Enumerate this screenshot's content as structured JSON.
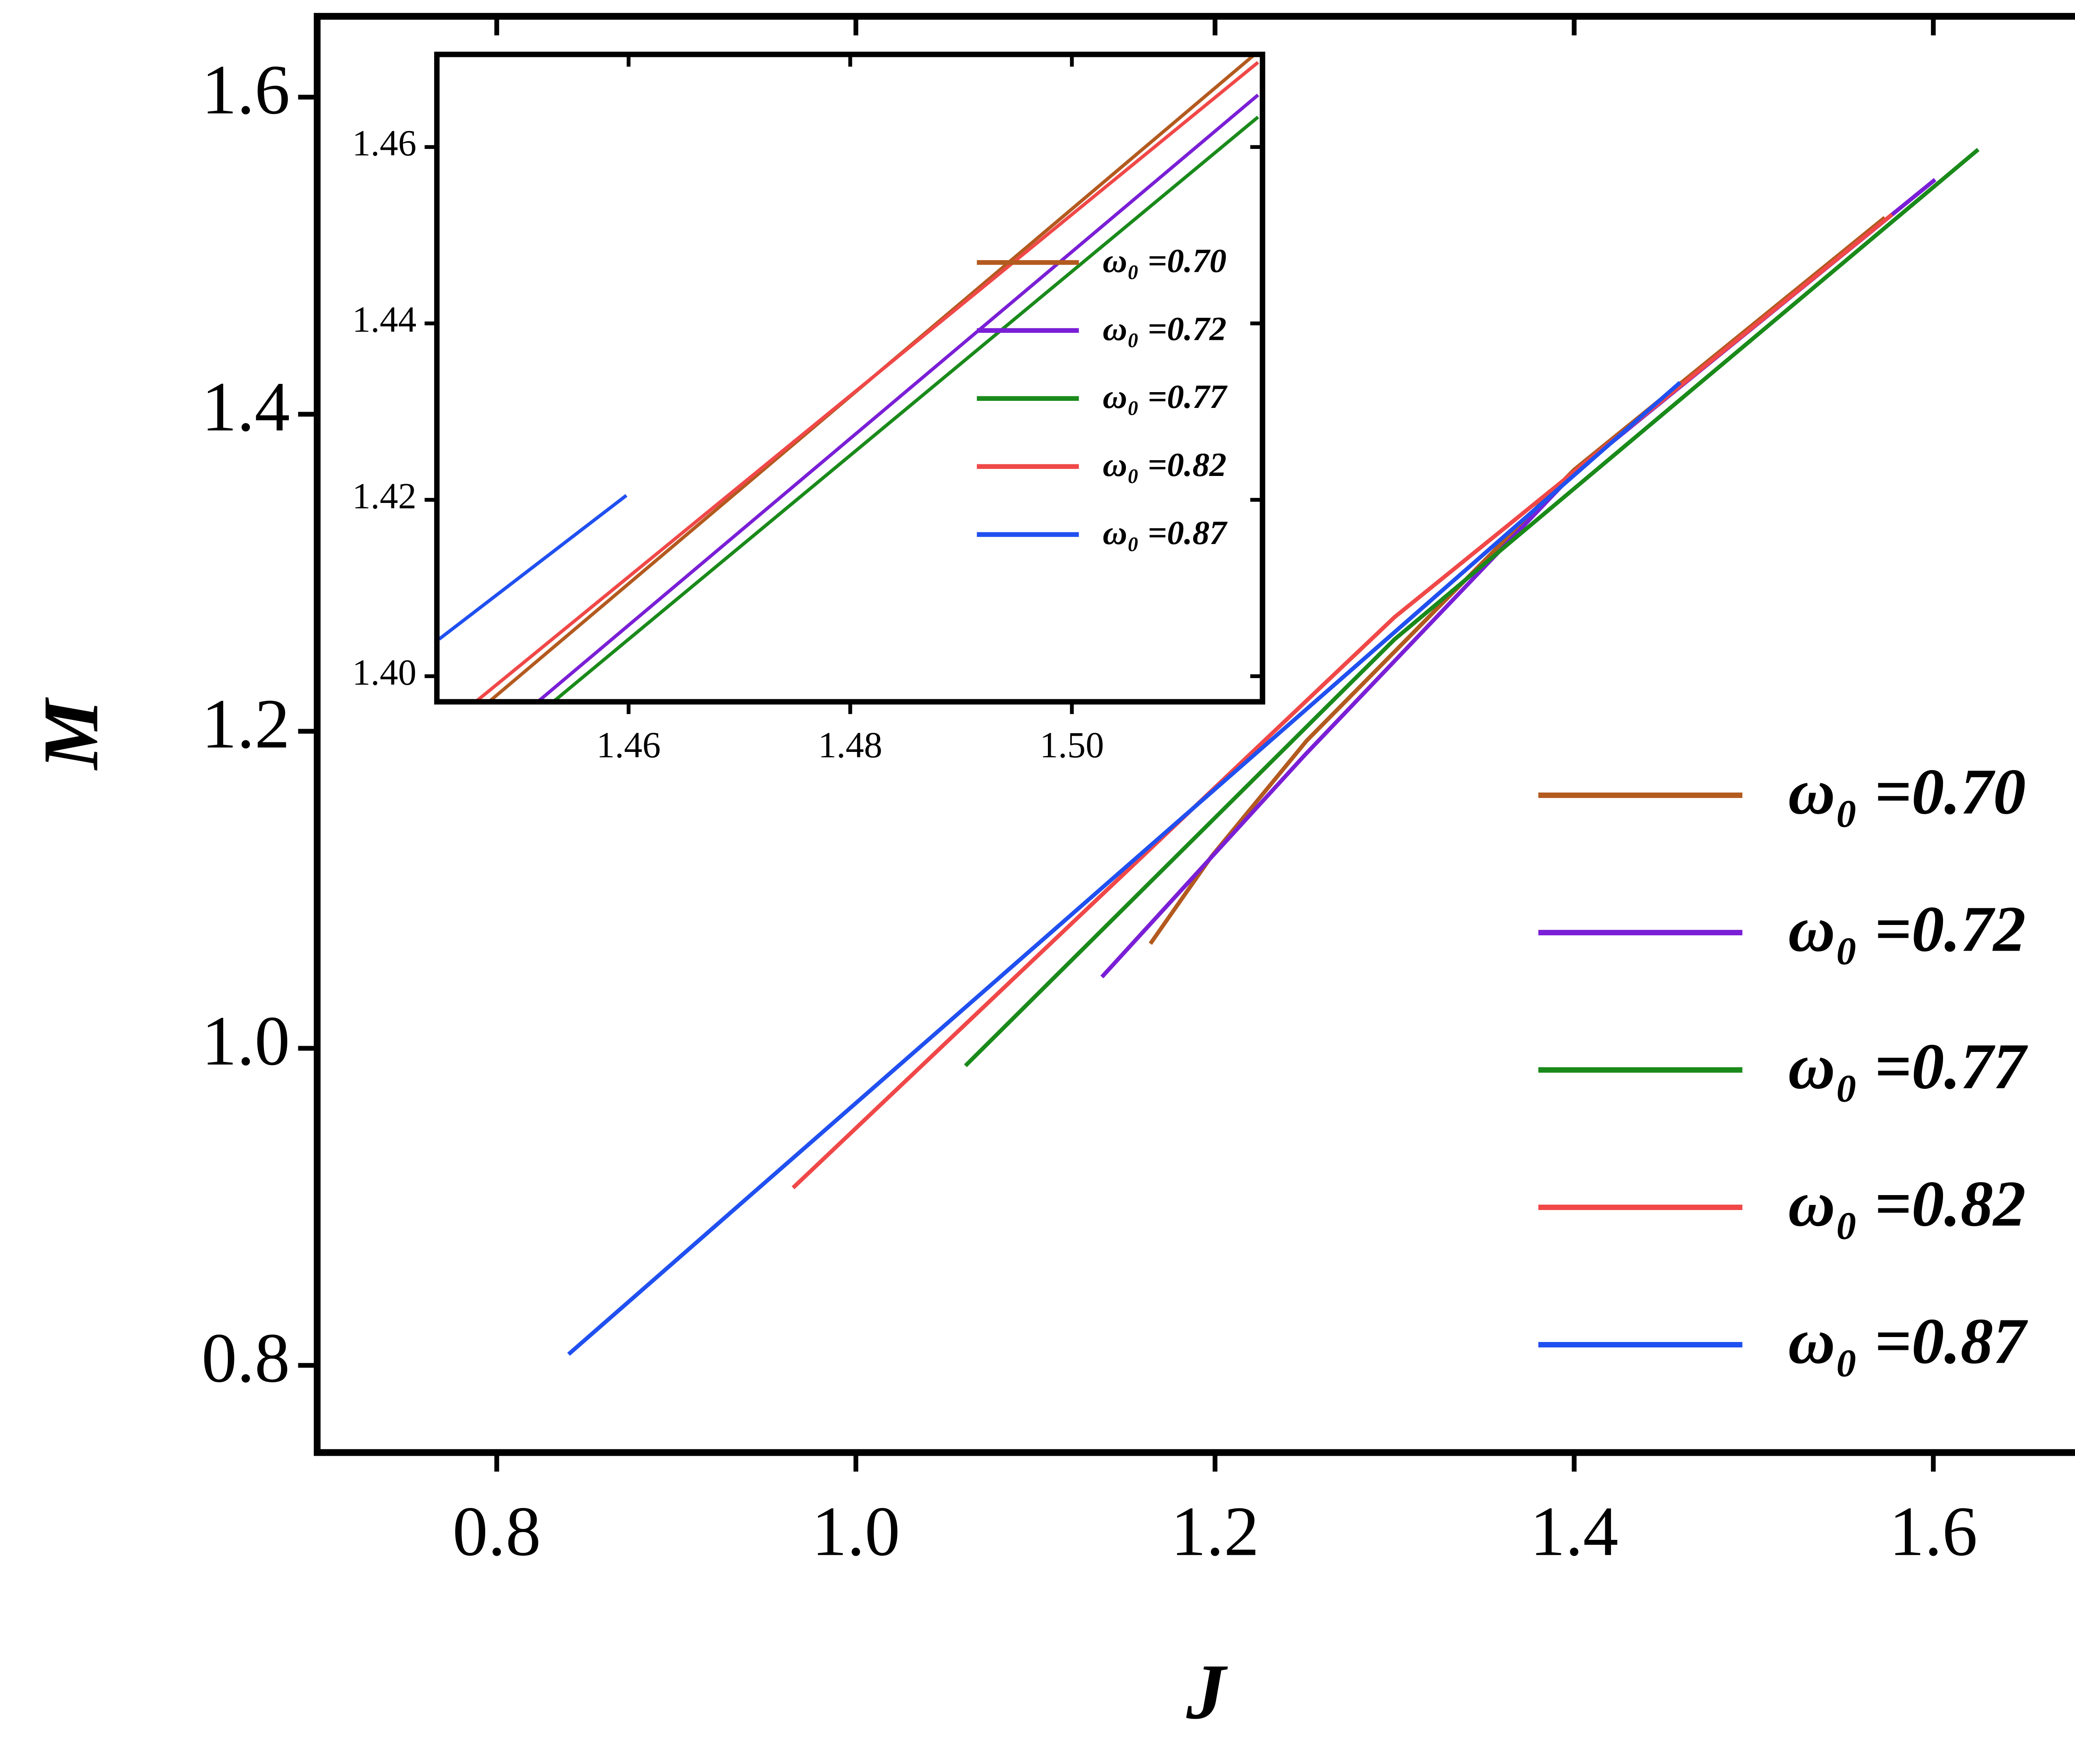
{
  "chart_data": [
    {
      "type": "line",
      "xlabel": "J",
      "ylabel": "M",
      "xlim": [
        0.7,
        1.69
      ],
      "ylim": [
        0.745,
        1.651
      ],
      "xticks": [
        {
          "value": 0.8,
          "label": "0.8"
        },
        {
          "value": 1.0,
          "label": "1.0"
        },
        {
          "value": 1.2,
          "label": "1.2"
        },
        {
          "value": 1.4,
          "label": "1.4"
        },
        {
          "value": 1.6,
          "label": "1.6"
        }
      ],
      "yticks": [
        {
          "value": 0.8,
          "label": "0.8"
        },
        {
          "value": 1.0,
          "label": "1.0"
        },
        {
          "value": 1.2,
          "label": "1.2"
        },
        {
          "value": 1.4,
          "label": "1.4"
        },
        {
          "value": 1.6,
          "label": "1.6"
        }
      ],
      "legend": "lower right",
      "series": [
        {
          "name": "ω₀ =0.70",
          "color": "#b35a1f",
          "x": [
            1.164,
            1.198,
            1.251,
            1.4,
            1.573
          ],
          "values": [
            1.066,
            1.121,
            1.194,
            1.365,
            1.524
          ]
        },
        {
          "name": "ω₀ =0.72",
          "color": "#7a1fd6",
          "x": [
            1.137,
            1.25,
            1.4,
            1.601
          ],
          "values": [
            1.045,
            1.185,
            1.363,
            1.548
          ]
        },
        {
          "name": "ω₀ =0.77",
          "color": "#1a8a1a",
          "x": [
            1.061,
            1.3,
            1.625
          ],
          "values": [
            0.989,
            1.258,
            1.567
          ]
        },
        {
          "name": "ω₀ =0.82",
          "color": "#f04848",
          "x": [
            0.965,
            1.3,
            1.577
          ],
          "values": [
            0.912,
            1.272,
            1.526
          ]
        },
        {
          "name": "ω₀ =0.87",
          "color": "#2050f0",
          "x": [
            0.84,
            1.459
          ],
          "values": [
            0.807,
            1.42
          ]
        }
      ]
    },
    {
      "type": "line",
      "xlim": [
        1.4427,
        1.5172
      ],
      "ylim": [
        1.3971,
        1.4705
      ],
      "xticks": [
        {
          "value": 1.46,
          "label": "1.46"
        },
        {
          "value": 1.48,
          "label": "1.48"
        },
        {
          "value": 1.5,
          "label": "1.50"
        }
      ],
      "yticks": [
        {
          "value": 1.4,
          "label": "1.40"
        },
        {
          "value": 1.42,
          "label": "1.42"
        },
        {
          "value": 1.44,
          "label": "1.44"
        },
        {
          "value": 1.46,
          "label": "1.46"
        }
      ],
      "legend": "center right",
      "series": [
        {
          "name": "ω₀ =0.70",
          "color": "#b35a1f",
          "x": [
            1.4474,
            1.5165
          ],
          "values": [
            1.3971,
            1.4705
          ]
        },
        {
          "name": "ω₀ =0.72",
          "color": "#7a1fd6",
          "x": [
            1.4518,
            1.5168
          ],
          "values": [
            1.3971,
            1.4659
          ]
        },
        {
          "name": "ω₀ =0.77",
          "color": "#1a8a1a",
          "x": [
            1.4532,
            1.5168
          ],
          "values": [
            1.3971,
            1.4634
          ]
        },
        {
          "name": "ω₀ =0.82",
          "color": "#f04848",
          "x": [
            1.4462,
            1.5168
          ],
          "values": [
            1.3971,
            1.4696
          ]
        },
        {
          "name": "ω₀ =0.87",
          "color": "#2050f0",
          "x": [
            1.4429,
            1.4598
          ],
          "values": [
            1.4042,
            1.4205
          ]
        }
      ]
    }
  ]
}
